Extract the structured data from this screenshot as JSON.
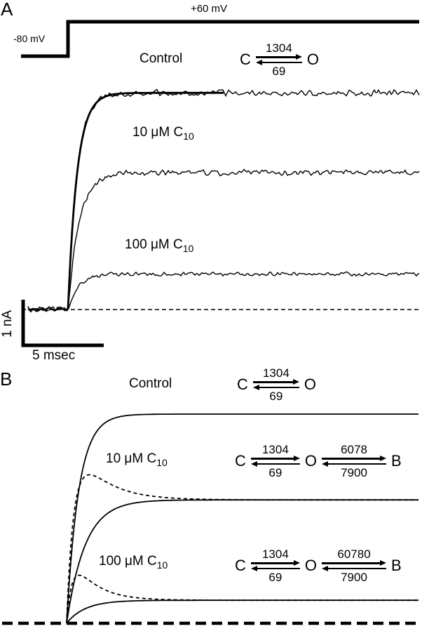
{
  "figure": {
    "panel_a_letter": "A",
    "panel_b_letter": "B",
    "ink_color": "#000000",
    "background_color": "#ffffff"
  },
  "chart_data": {
    "type": "line",
    "description": "Macroscopic current traces (recorded and simulated) showing open-channel block by C10; kinetic schemes with rate constants shown beside each trace.",
    "panels": [
      {
        "id": "A",
        "kind": "recorded current traces during voltage step",
        "voltage_protocol": {
          "holding_label": "-80 mV",
          "step_label": "+60 mV"
        },
        "scale_bars": {
          "vertical": "1 nA",
          "horizontal": "5 msec"
        },
        "traces": [
          {
            "label_prefix": "Control",
            "label_sub": "",
            "plateau_nA": 4.9,
            "tau_ms": 0.57,
            "has_fit": true
          },
          {
            "label_prefix": "10 μM C",
            "label_sub": "10",
            "plateau_nA": 3.1,
            "tau_ms": 0.7,
            "has_fit": false
          },
          {
            "label_prefix": "100 μM C",
            "label_sub": "10",
            "plateau_nA": 0.8,
            "tau_ms": 0.6,
            "has_fit": false
          }
        ],
        "scheme": {
          "states": [
            "C",
            "O"
          ],
          "rates": [
            {
              "forward": "1304",
              "reverse": "69"
            }
          ]
        }
      },
      {
        "id": "B",
        "kind": "simulated traces from C-O(-B) kinetic schemes",
        "rows": [
          {
            "label_prefix": "Control",
            "label_sub": "",
            "scheme": {
              "states": [
                "C",
                "O"
              ],
              "rates": [
                {
                  "forward": "1304",
                  "reverse": "69"
                }
              ]
            },
            "curves": [
              {
                "style": "solid",
                "plateau_rel": 1.0,
                "tau_rise_ms": 0.75
              }
            ]
          },
          {
            "label_prefix": "10 μM C",
            "label_sub": "10",
            "scheme": {
              "states": [
                "C",
                "O",
                "B"
              ],
              "rates": [
                {
                  "forward": "1304",
                  "reverse": "69"
                },
                {
                  "forward": "6078",
                  "reverse": "7900"
                }
              ]
            },
            "curves": [
              {
                "style": "dashed",
                "peak_rel": 0.71,
                "plateau_rel": 0.59,
                "tau_rise_ms": 0.5,
                "tau_decay_ms": 1.75
              },
              {
                "style": "solid",
                "plateau_rel": 0.59,
                "tau_rise_ms": 1.15
              }
            ]
          },
          {
            "label_prefix": "100 μM C",
            "label_sub": "10",
            "scheme": {
              "states": [
                "C",
                "O",
                "B"
              ],
              "rates": [
                {
                  "forward": "1304",
                  "reverse": "69"
                },
                {
                  "forward": "60780",
                  "reverse": "7900"
                }
              ]
            },
            "curves": [
              {
                "style": "dashed",
                "peak_rel": 0.23,
                "plateau_rel": 0.11,
                "tau_rise_ms": 0.4,
                "tau_decay_ms": 1.4
              },
              {
                "style": "solid",
                "plateau_rel": 0.11,
                "tau_rise_ms": 1.15
              }
            ]
          }
        ]
      }
    ]
  }
}
